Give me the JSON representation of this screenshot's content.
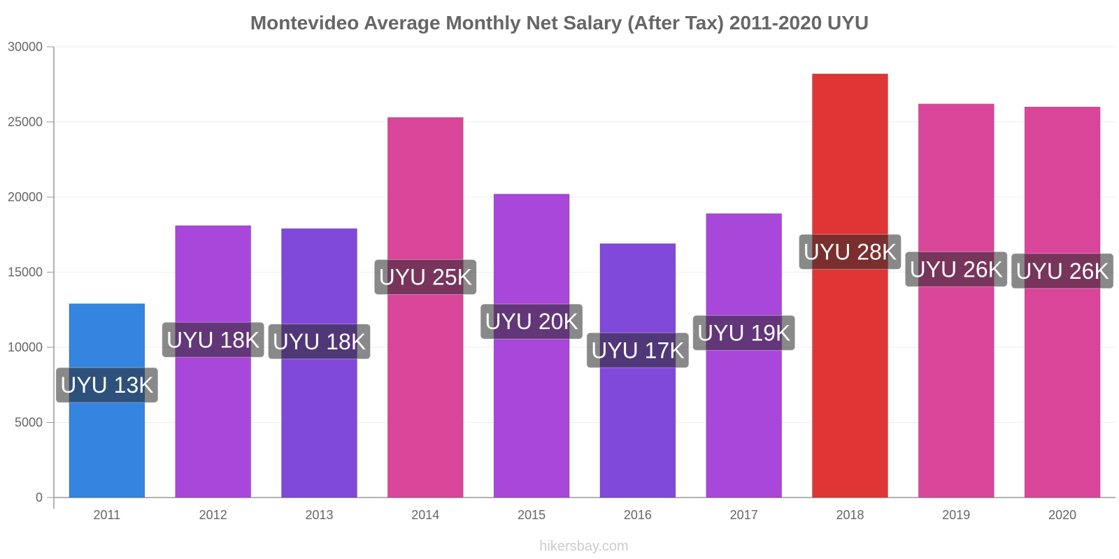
{
  "chart_data": {
    "type": "bar",
    "title": "Montevideo Average Monthly Net Salary (After Tax) 2011-2020 UYU",
    "categories": [
      "2011",
      "2012",
      "2013",
      "2014",
      "2015",
      "2016",
      "2017",
      "2018",
      "2019",
      "2020"
    ],
    "values": [
      12900,
      18100,
      17900,
      25300,
      20200,
      16900,
      18900,
      28200,
      26200,
      26000
    ],
    "data_labels": [
      "UYU 13K",
      "UYU 18K",
      "UYU 18K",
      "UYU 25K",
      "UYU 20K",
      "UYU 17K",
      "UYU 19K",
      "UYU 28K",
      "UYU 26K",
      "UYU 26K"
    ],
    "bar_colors": [
      "#3584e0",
      "#a847d9",
      "#8049d9",
      "#d94699",
      "#a847d9",
      "#8049d9",
      "#a847d9",
      "#e03535",
      "#d94699",
      "#d94699"
    ],
    "ylim": [
      0,
      30000
    ],
    "yticks": [
      "0",
      "5000",
      "10000",
      "15000",
      "20000",
      "25000",
      "30000"
    ],
    "xlabel": "",
    "ylabel": "",
    "grid": true,
    "legend": "none"
  },
  "credit": "hikersbay.com"
}
